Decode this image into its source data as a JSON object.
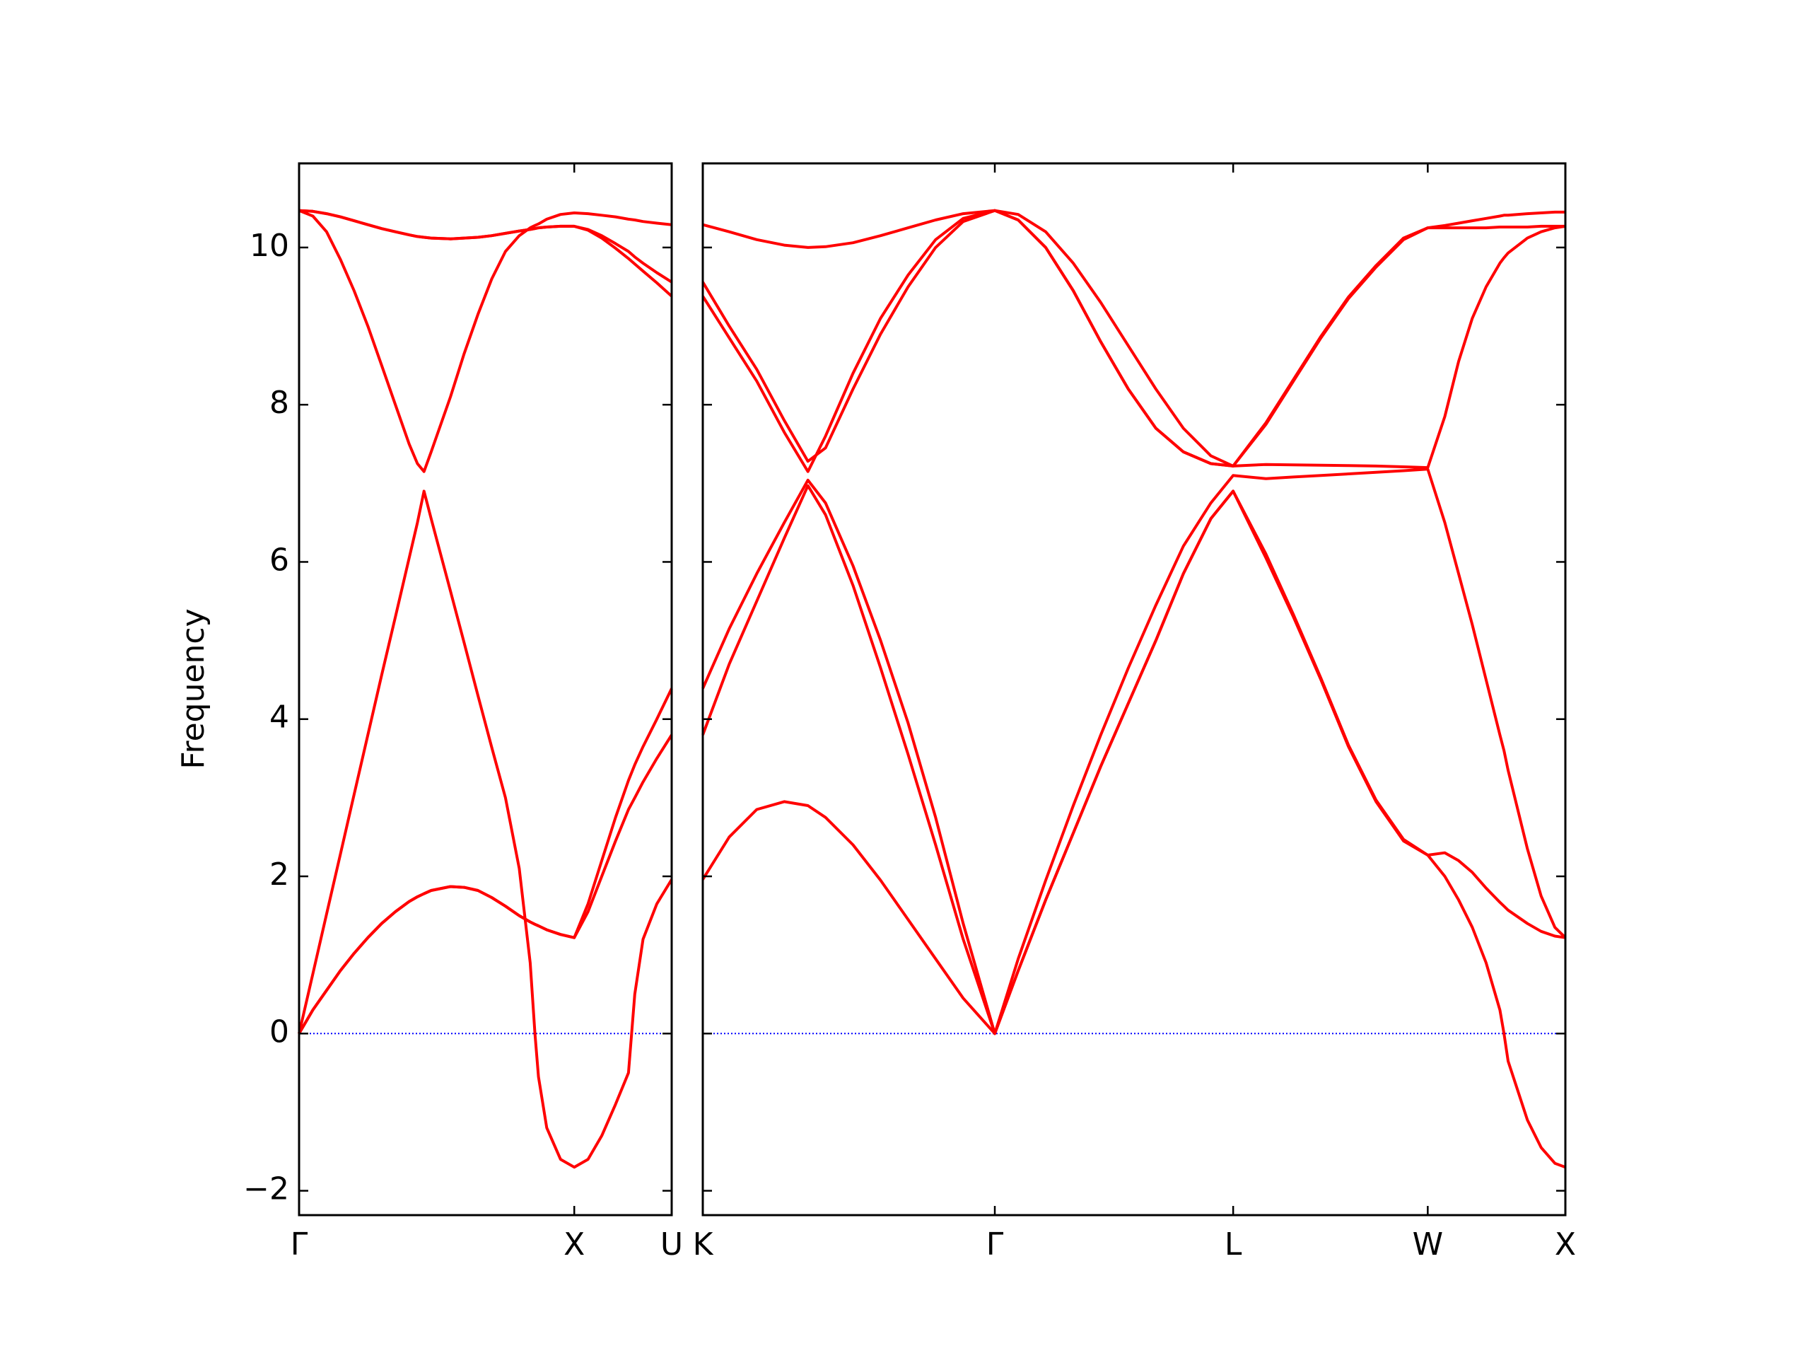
{
  "chart_data": [
    {
      "type": "line",
      "ylabel": "Frequency",
      "x": [
        0,
        0.05,
        0.1,
        0.15,
        0.2,
        0.25,
        0.3,
        0.35,
        0.4,
        0.43,
        0.454,
        0.48,
        0.55,
        0.6,
        0.65,
        0.7,
        0.75,
        0.8,
        0.84,
        0.857,
        0.87,
        0.9,
        0.95,
        1.0,
        1.05,
        1.1,
        1.15,
        1.197,
        1.22,
        1.25,
        1.3,
        1.354
      ],
      "xlim": [
        0,
        1.354
      ],
      "ylim": [
        -2.31,
        11.07
      ],
      "xticks": [
        {
          "value": 0,
          "label": "Γ"
        },
        {
          "value": 1,
          "label": "X"
        },
        {
          "value": 1.354,
          "label": "U"
        }
      ],
      "yticks": [
        {
          "value": -2,
          "label": "−2"
        },
        0,
        2,
        4,
        6,
        8,
        10
      ],
      "hlines": [
        {
          "value": 0,
          "color": "#0000ff"
        }
      ],
      "series": [
        {
          "color": "#ff0000",
          "values": [
            0,
            0.3,
            0.55,
            0.8,
            1.02,
            1.22,
            1.4,
            1.55,
            1.68,
            1.74,
            1.78,
            1.82,
            1.87,
            1.86,
            1.82,
            1.73,
            1.62,
            1.5,
            1.42,
            1.39,
            1.37,
            1.32,
            1.26,
            1.22,
            1.55,
            2.0,
            2.45,
            2.85,
            3.0,
            3.2,
            3.5,
            3.8
          ]
        },
        {
          "color": "#ff0000",
          "values": [
            0,
            0.76,
            1.52,
            2.28,
            3.04,
            3.8,
            4.56,
            5.3,
            6.05,
            6.5,
            6.9,
            6.55,
            5.63,
            4.97,
            4.3,
            3.64,
            3.0,
            2.1,
            0.9,
            0,
            -0.55,
            -1.2,
            -1.6,
            -1.7,
            -1.6,
            -1.3,
            -0.9,
            -0.5,
            0.5,
            1.2,
            1.65,
            1.96
          ]
        },
        {
          "color": "#ff0000",
          "values": [
            0,
            0.3,
            0.55,
            0.8,
            1.02,
            1.22,
            1.4,
            1.55,
            1.68,
            1.74,
            1.78,
            1.82,
            1.87,
            1.86,
            1.82,
            1.73,
            1.62,
            1.5,
            1.42,
            1.39,
            1.37,
            1.32,
            1.26,
            1.22,
            1.65,
            2.2,
            2.75,
            3.22,
            3.42,
            3.65,
            4.0,
            4.39
          ]
        },
        {
          "color": "#ff0000",
          "values": [
            10.47,
            10.4,
            10.2,
            9.85,
            9.45,
            9.0,
            8.5,
            8.0,
            7.5,
            7.25,
            7.15,
            7.4,
            8.1,
            8.65,
            9.15,
            9.6,
            9.95,
            10.15,
            10.25,
            10.28,
            10.3,
            10.36,
            10.42,
            10.44,
            10.43,
            10.41,
            10.39,
            10.36,
            10.35,
            10.33,
            10.31,
            10.29
          ]
        },
        {
          "color": "#ff0000",
          "values": [
            10.47,
            10.46,
            10.43,
            10.39,
            10.34,
            10.29,
            10.24,
            10.2,
            10.16,
            10.14,
            10.13,
            10.12,
            10.11,
            10.12,
            10.13,
            10.15,
            10.18,
            10.21,
            10.23,
            10.24,
            10.25,
            10.26,
            10.27,
            10.27,
            10.23,
            10.15,
            10.05,
            9.95,
            9.88,
            9.8,
            9.68,
            9.56
          ]
        },
        {
          "color": "#ff0000",
          "values": [
            10.47,
            10.46,
            10.43,
            10.39,
            10.34,
            10.29,
            10.24,
            10.2,
            10.16,
            10.14,
            10.13,
            10.12,
            10.11,
            10.12,
            10.13,
            10.15,
            10.18,
            10.21,
            10.23,
            10.24,
            10.25,
            10.26,
            10.27,
            10.27,
            10.22,
            10.12,
            9.99,
            9.86,
            9.79,
            9.7,
            9.55,
            9.38
          ]
        }
      ]
    },
    {
      "type": "line",
      "x": [
        1.354,
        1.45,
        1.55,
        1.65,
        1.736,
        1.8,
        1.9,
        2.0,
        2.1,
        2.2,
        2.3,
        2.415,
        2.5,
        2.6,
        2.7,
        2.8,
        2.9,
        3.0,
        3.1,
        3.2,
        3.281,
        3.4,
        3.5,
        3.6,
        3.7,
        3.8,
        3.9,
        3.988,
        4.05,
        4.1,
        4.15,
        4.2,
        4.25,
        4.265,
        4.28,
        4.35,
        4.4,
        4.45,
        4.488
      ],
      "xlim": [
        1.354,
        4.488
      ],
      "ylim": [
        -2.31,
        11.07
      ],
      "xticks": [
        {
          "value": 1.354,
          "label": "K"
        },
        {
          "value": 2.415,
          "label": "Γ"
        },
        {
          "value": 3.281,
          "label": "L"
        },
        {
          "value": 3.988,
          "label": "W"
        },
        {
          "value": 4.488,
          "label": "X"
        }
      ],
      "hlines": [
        {
          "value": 0,
          "color": "#0000ff"
        }
      ],
      "series": [
        {
          "color": "#ff0000",
          "values": [
            1.96,
            2.5,
            2.85,
            2.95,
            2.9,
            2.75,
            2.4,
            1.95,
            1.45,
            0.95,
            0.45,
            0,
            0.8,
            1.7,
            2.55,
            3.4,
            4.2,
            5.0,
            5.85,
            6.55,
            6.9,
            6.05,
            5.3,
            4.5,
            3.65,
            2.95,
            2.45,
            2.27,
            2.0,
            1.7,
            1.35,
            0.9,
            0.3,
            0,
            -0.35,
            -1.1,
            -1.45,
            -1.65,
            -1.7
          ]
        },
        {
          "color": "#ff0000",
          "values": [
            3.8,
            4.7,
            5.5,
            6.3,
            6.97,
            6.6,
            5.7,
            4.65,
            3.55,
            2.4,
            1.2,
            0,
            0.8,
            1.7,
            2.55,
            3.4,
            4.2,
            5.0,
            5.85,
            6.55,
            6.9,
            6.1,
            5.33,
            4.52,
            3.67,
            2.97,
            2.47,
            2.27,
            2.3,
            2.2,
            2.05,
            1.85,
            1.67,
            1.62,
            1.57,
            1.4,
            1.3,
            1.24,
            1.22
          ]
        },
        {
          "color": "#ff0000",
          "values": [
            4.39,
            5.15,
            5.85,
            6.5,
            7.04,
            6.75,
            5.95,
            5.0,
            3.95,
            2.75,
            1.4,
            0,
            0.95,
            1.95,
            2.9,
            3.8,
            4.65,
            5.45,
            6.2,
            6.75,
            7.1,
            7.06,
            7.08,
            7.1,
            7.12,
            7.14,
            7.16,
            7.18,
            6.5,
            5.85,
            5.2,
            4.5,
            3.8,
            3.6,
            3.35,
            2.35,
            1.75,
            1.35,
            1.22
          ]
        },
        {
          "color": "#ff0000",
          "values": [
            9.38,
            8.85,
            8.3,
            7.65,
            7.15,
            7.6,
            8.4,
            9.1,
            9.65,
            10.1,
            10.37,
            10.47,
            10.42,
            10.2,
            9.8,
            9.3,
            8.75,
            8.2,
            7.7,
            7.35,
            7.22,
            7.24,
            7.235,
            7.23,
            7.225,
            7.22,
            7.21,
            7.2,
            7.85,
            8.55,
            9.1,
            9.5,
            9.8,
            9.87,
            9.93,
            10.12,
            10.2,
            10.25,
            10.27
          ]
        },
        {
          "color": "#ff0000",
          "values": [
            9.56,
            9.0,
            8.45,
            7.8,
            7.28,
            7.45,
            8.2,
            8.9,
            9.5,
            10.0,
            10.33,
            10.47,
            10.35,
            10.0,
            9.45,
            8.8,
            8.2,
            7.7,
            7.4,
            7.25,
            7.22,
            7.75,
            8.3,
            8.85,
            9.35,
            9.75,
            10.1,
            10.25,
            10.25,
            10.25,
            10.25,
            10.25,
            10.26,
            10.26,
            10.26,
            10.26,
            10.27,
            10.27,
            10.27
          ]
        },
        {
          "color": "#ff0000",
          "values": [
            10.29,
            10.2,
            10.1,
            10.03,
            10.0,
            10.01,
            10.06,
            10.15,
            10.25,
            10.35,
            10.43,
            10.47,
            10.35,
            10.0,
            9.45,
            8.8,
            8.2,
            7.7,
            7.4,
            7.25,
            7.22,
            7.77,
            8.32,
            8.87,
            9.37,
            9.77,
            10.12,
            10.25,
            10.28,
            10.31,
            10.34,
            10.37,
            10.4,
            10.41,
            10.41,
            10.43,
            10.44,
            10.45,
            10.45
          ]
        }
      ]
    }
  ]
}
